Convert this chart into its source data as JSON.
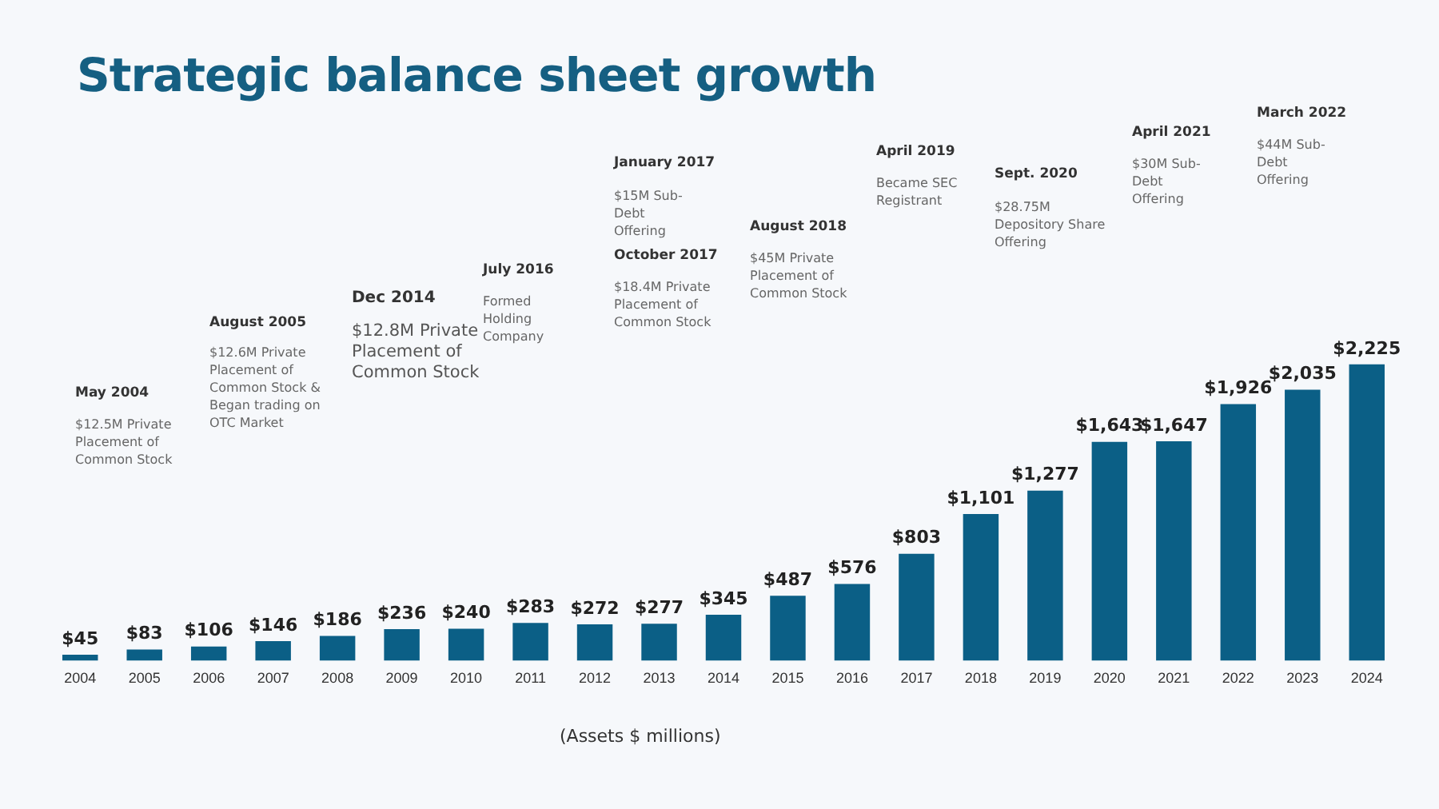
{
  "chart_data": {
    "type": "bar",
    "title": "Strategic balance sheet growth",
    "categories": [
      "2004",
      "2005",
      "2006",
      "2007",
      "2008",
      "2009",
      "2010",
      "2011",
      "2012",
      "2013",
      "2014",
      "2015",
      "2016",
      "2017",
      "2018",
      "2019",
      "2020",
      "2021",
      "2022",
      "2023",
      "2024"
    ],
    "values": [
      45,
      83,
      106,
      146,
      186,
      236,
      240,
      283,
      272,
      277,
      345,
      487,
      576,
      803,
      1101,
      1277,
      1643,
      1647,
      1926,
      2035,
      2225
    ],
    "value_labels": [
      "$45",
      "$83",
      "$106",
      "$146",
      "$186",
      "$236",
      "$240",
      "$283",
      "$272",
      "$277",
      "$345",
      "$487",
      "$576",
      "$803",
      "$1,101",
      "$1,277",
      "$1,643",
      "$1,647",
      "$1,926",
      "$2,035",
      "$2,225"
    ],
    "color": "#0b5f86",
    "tick_labels": "x",
    "annotations": [
      "May 2004",
      "$12.5M Private Placement of Common Stock",
      "August 2005",
      "$12.6M Private Placement of Common Stock & Began trading on OTC Market",
      "Dec 2014",
      "$12.8M Private Placement of Common Stock",
      "July 2016",
      "Formed Holding Company",
      "January 2017",
      "$15M Sub-Debt Offering",
      "October 2017",
      "$18.4M Private Placement of Common Stock",
      "August 2018",
      "$45M Private Placement of Common Stock",
      "April 2019",
      "Became SEC Registrant",
      "Sept. 2020",
      "$28.75M Depository Share Offering",
      "April 2021",
      "$30M Sub-Debt Offering",
      "March 2022",
      "$44M Sub-Debt Offering",
      "(Assets $ millions)"
    ]
  }
}
